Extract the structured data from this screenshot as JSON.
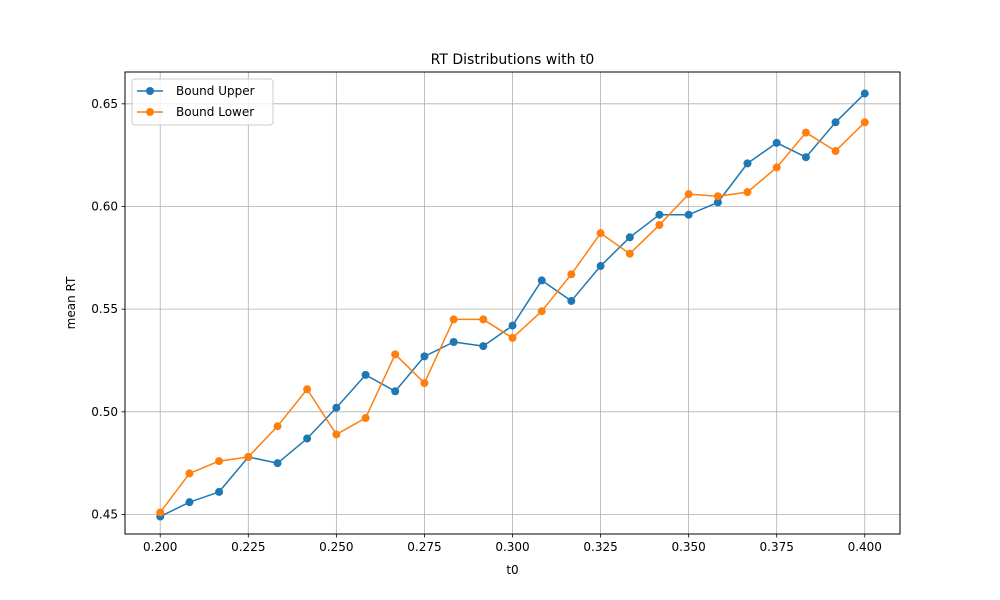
{
  "chart_data": {
    "type": "line",
    "title": "RT Distributions with t0",
    "xlabel": "t0",
    "ylabel": "mean RT",
    "xlim": [
      0.19,
      0.41
    ],
    "ylim": [
      0.4405,
      0.6655
    ],
    "xticks": [
      0.2,
      0.225,
      0.25,
      0.275,
      0.3,
      0.325,
      0.35,
      0.375,
      0.4
    ],
    "xtick_labels": [
      "0.200",
      "0.225",
      "0.250",
      "0.275",
      "0.300",
      "0.325",
      "0.350",
      "0.375",
      "0.400"
    ],
    "yticks": [
      0.45,
      0.5,
      0.55,
      0.6,
      0.65
    ],
    "ytick_labels": [
      "0.45",
      "0.50",
      "0.55",
      "0.60",
      "0.65"
    ],
    "grid": true,
    "legend_position": "top-left",
    "x": [
      0.2,
      0.2083,
      0.2167,
      0.225,
      0.2333,
      0.2417,
      0.25,
      0.2583,
      0.2667,
      0.275,
      0.2833,
      0.2917,
      0.3,
      0.3083,
      0.3167,
      0.325,
      0.3333,
      0.3417,
      0.35,
      0.3583,
      0.3667,
      0.375,
      0.3833,
      0.3917,
      0.4
    ],
    "series": [
      {
        "name": "Bound Upper",
        "color": "#1f77b4",
        "values": [
          0.449,
          0.456,
          0.461,
          0.478,
          0.475,
          0.487,
          0.502,
          0.518,
          0.51,
          0.527,
          0.534,
          0.532,
          0.542,
          0.564,
          0.554,
          0.571,
          0.585,
          0.596,
          0.596,
          0.602,
          0.621,
          0.631,
          0.624,
          0.641,
          0.655
        ]
      },
      {
        "name": "Bound Lower",
        "color": "#ff7f0e",
        "values": [
          0.451,
          0.47,
          0.476,
          0.478,
          0.493,
          0.511,
          0.489,
          0.497,
          0.528,
          0.514,
          0.545,
          0.545,
          0.536,
          0.549,
          0.567,
          0.587,
          0.577,
          0.591,
          0.606,
          0.605,
          0.607,
          0.619,
          0.636,
          0.627,
          0.641
        ]
      }
    ]
  }
}
